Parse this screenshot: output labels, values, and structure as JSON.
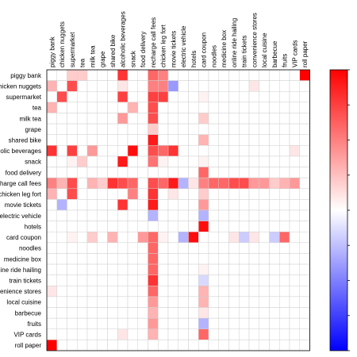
{
  "chart_data": {
    "type": "heatmap",
    "x_labels": [
      "piggy bank",
      "chicken nuggets",
      "supermarket",
      "tea",
      "milk tea",
      "grape",
      "shared bike",
      "alcoholic beverages",
      "snack",
      "food delivery",
      "recharge call fees",
      "chicken leg fort",
      "movie tickets",
      "electric vehicle",
      "hotels",
      "card coupon",
      "noodles",
      "medicine box",
      "online ride hailing",
      "train tickets",
      "convenience stores",
      "local cuisine",
      "barbecue",
      "fruits",
      "VIP cards",
      "roll paper"
    ],
    "y_labels": [
      "piggy bank",
      "chicken nuggets",
      "supermarket",
      "tea",
      "milk tea",
      "grape",
      "shared bike",
      "alcoholic beverages",
      "snack",
      "food delivery",
      "recharge call fees",
      "chicken leg fort",
      "movie tickets",
      "electric vehicle",
      "hotels",
      "card coupon",
      "noodles",
      "medicine box",
      "online ride hailing",
      "train tickets",
      "convenience stores",
      "local cuisine",
      "barbecue",
      "fruits",
      "VIP cards",
      "roll paper"
    ],
    "values": [
      [
        0,
        0,
        0.2,
        0.2,
        0,
        0,
        0,
        0.8,
        0,
        0,
        0.6,
        0.5,
        0,
        0,
        0,
        0,
        0,
        0,
        0,
        0,
        0,
        0,
        0,
        0,
        0,
        1.0
      ],
      [
        0.3,
        0,
        0.7,
        0,
        0,
        0,
        0,
        0.1,
        0,
        0,
        0.5,
        0.5,
        -0.4,
        0,
        0,
        0,
        0,
        0,
        0,
        0,
        0.1,
        0,
        0,
        0,
        0,
        0
      ],
      [
        0,
        0.7,
        0,
        0,
        0,
        0,
        0,
        0.75,
        0,
        0,
        0.75,
        0.75,
        0,
        0,
        0,
        0.05,
        0,
        0,
        0,
        0,
        0,
        0,
        0,
        0,
        0,
        0
      ],
      [
        0.3,
        0,
        0,
        0,
        0,
        0,
        0,
        0,
        0.3,
        0,
        0.7,
        0,
        0,
        0,
        0,
        0,
        0,
        0,
        0,
        0,
        0,
        0,
        0,
        0,
        0,
        0
      ],
      [
        0,
        0,
        0,
        0,
        0,
        0,
        0,
        0.4,
        0,
        0,
        0.7,
        0,
        0,
        0,
        0,
        0.2,
        0,
        0,
        0,
        0,
        0,
        0,
        0,
        0,
        0,
        0
      ],
      [
        0,
        0,
        0,
        0,
        0,
        0,
        0,
        0,
        0,
        0,
        0.2,
        0,
        0,
        0,
        0,
        0,
        0,
        0,
        0,
        0,
        0,
        0,
        0,
        0,
        0,
        0
      ],
      [
        0,
        0,
        0,
        0,
        0,
        0,
        0,
        0,
        0,
        0,
        0.9,
        0,
        0,
        0,
        0,
        0.3,
        0,
        0,
        0,
        0,
        0,
        0,
        0,
        0,
        0,
        0
      ],
      [
        0.8,
        0,
        0.75,
        0,
        0.4,
        0,
        0,
        0,
        0.95,
        0,
        0.7,
        0.6,
        0.8,
        0,
        0,
        0,
        0,
        0,
        0,
        0,
        0,
        0,
        0,
        0,
        0.1,
        0
      ],
      [
        0,
        0,
        0.05,
        0.2,
        0,
        0,
        0,
        0.9,
        0,
        0,
        0.55,
        0.05,
        0,
        0,
        0,
        0.05,
        0,
        0,
        0,
        0,
        0,
        0,
        0,
        0,
        0,
        0
      ],
      [
        0,
        0,
        0,
        0,
        0,
        0,
        0,
        0,
        0,
        0,
        0,
        0,
        0,
        0,
        0,
        0.6,
        0,
        0,
        0,
        0,
        0,
        0,
        0,
        0,
        0,
        0
      ],
      [
        0.5,
        0.3,
        0.7,
        0,
        0.3,
        0.2,
        0.8,
        0.7,
        0.6,
        0,
        0.7,
        0.6,
        0.9,
        -0.3,
        0.1,
        0.5,
        0.6,
        0.6,
        0.7,
        0.7,
        0.4,
        0.4,
        0.2,
        0.3,
        0.4,
        0
      ],
      [
        0.3,
        0,
        0.7,
        0,
        0,
        0,
        0,
        0,
        0.5,
        0,
        0.8,
        0,
        0.1,
        0,
        0,
        0.2,
        0,
        0,
        0,
        0,
        0,
        0,
        0,
        0,
        0,
        0
      ],
      [
        0,
        -0.3,
        0,
        0,
        0,
        0,
        0,
        0.8,
        0,
        0,
        0.9,
        0,
        0,
        0,
        0,
        0.4,
        0,
        0,
        0,
        0,
        0,
        0,
        0,
        0,
        0,
        0
      ],
      [
        0,
        0,
        0,
        0,
        0,
        0,
        0,
        0,
        0,
        0,
        -0.3,
        0,
        0,
        0,
        0,
        -0.3,
        0,
        0,
        0,
        0,
        0,
        0,
        0,
        0,
        0,
        0
      ],
      [
        0,
        0,
        0,
        0,
        0,
        0,
        0,
        0,
        0,
        0,
        0,
        0,
        0,
        0,
        0,
        0.95,
        0,
        0,
        0,
        0,
        0,
        0,
        0,
        0,
        0,
        0
      ],
      [
        0,
        0,
        0.05,
        0,
        0.2,
        0,
        0.3,
        0,
        0,
        0.4,
        0.6,
        0.05,
        0,
        -0.3,
        0.95,
        0,
        0,
        0,
        0.1,
        -0.2,
        0.1,
        0,
        -0.2,
        0.6,
        0,
        0
      ],
      [
        0,
        0,
        0,
        0,
        0,
        0,
        0,
        0,
        0,
        0,
        0.6,
        0,
        0,
        0,
        0,
        0,
        0,
        0,
        0,
        0,
        0,
        0,
        0,
        0,
        0,
        0
      ],
      [
        0,
        0,
        0,
        0,
        0,
        0,
        0,
        0,
        0,
        0,
        0.6,
        0,
        0,
        0,
        0,
        0,
        0,
        0,
        0,
        0,
        0,
        0,
        0,
        0,
        0,
        0
      ],
      [
        0,
        0,
        0,
        0,
        0,
        0,
        0,
        0,
        0,
        0,
        0.6,
        0,
        0,
        0,
        0,
        0.05,
        0,
        0,
        0,
        0,
        0,
        0,
        0,
        0,
        0,
        0
      ],
      [
        0,
        0,
        0,
        0,
        0,
        0,
        0,
        0,
        0,
        0,
        0.8,
        0,
        0,
        0,
        0,
        -0.15,
        0,
        0,
        0,
        0,
        0,
        0,
        0,
        0,
        0,
        0
      ],
      [
        0.1,
        0,
        0,
        0,
        0,
        0,
        0,
        0,
        0,
        0,
        0.6,
        0,
        0,
        0,
        0,
        0.3,
        0,
        0,
        0,
        0,
        0,
        0,
        0,
        0,
        0,
        0
      ],
      [
        0,
        0,
        0,
        0,
        0,
        0,
        0,
        0,
        0,
        0,
        0.4,
        0,
        0,
        0,
        0,
        0.3,
        0,
        0,
        0,
        0,
        0,
        0,
        0,
        0,
        0,
        0
      ],
      [
        0,
        0,
        0,
        0,
        0,
        0,
        0,
        0,
        0,
        0,
        0.3,
        0,
        0,
        0,
        0,
        0.1,
        0,
        0,
        0,
        0,
        0,
        0,
        0,
        0,
        0,
        0
      ],
      [
        0,
        0,
        0,
        0,
        0,
        0,
        0,
        0,
        0,
        0,
        0.4,
        0,
        0,
        0,
        0,
        -0.3,
        0,
        0,
        0,
        0,
        0,
        0,
        0,
        0,
        0,
        0
      ],
      [
        0,
        0,
        0,
        0,
        0,
        0,
        0,
        0.1,
        0,
        0,
        0.3,
        0,
        0,
        0,
        0,
        0.6,
        0,
        0,
        0,
        0,
        0,
        0,
        0,
        0,
        0,
        0
      ],
      [
        1.0,
        0,
        0,
        0,
        0,
        0,
        0,
        0,
        0,
        0,
        0,
        0,
        0,
        0,
        0,
        0,
        0,
        0,
        0,
        0,
        0,
        0,
        0,
        0,
        0,
        0
      ]
    ],
    "colormap": "bwr",
    "vmin": -1,
    "vmax": 1,
    "colorbar": true,
    "grid": true,
    "title": "",
    "xlabel": "",
    "ylabel": ""
  }
}
